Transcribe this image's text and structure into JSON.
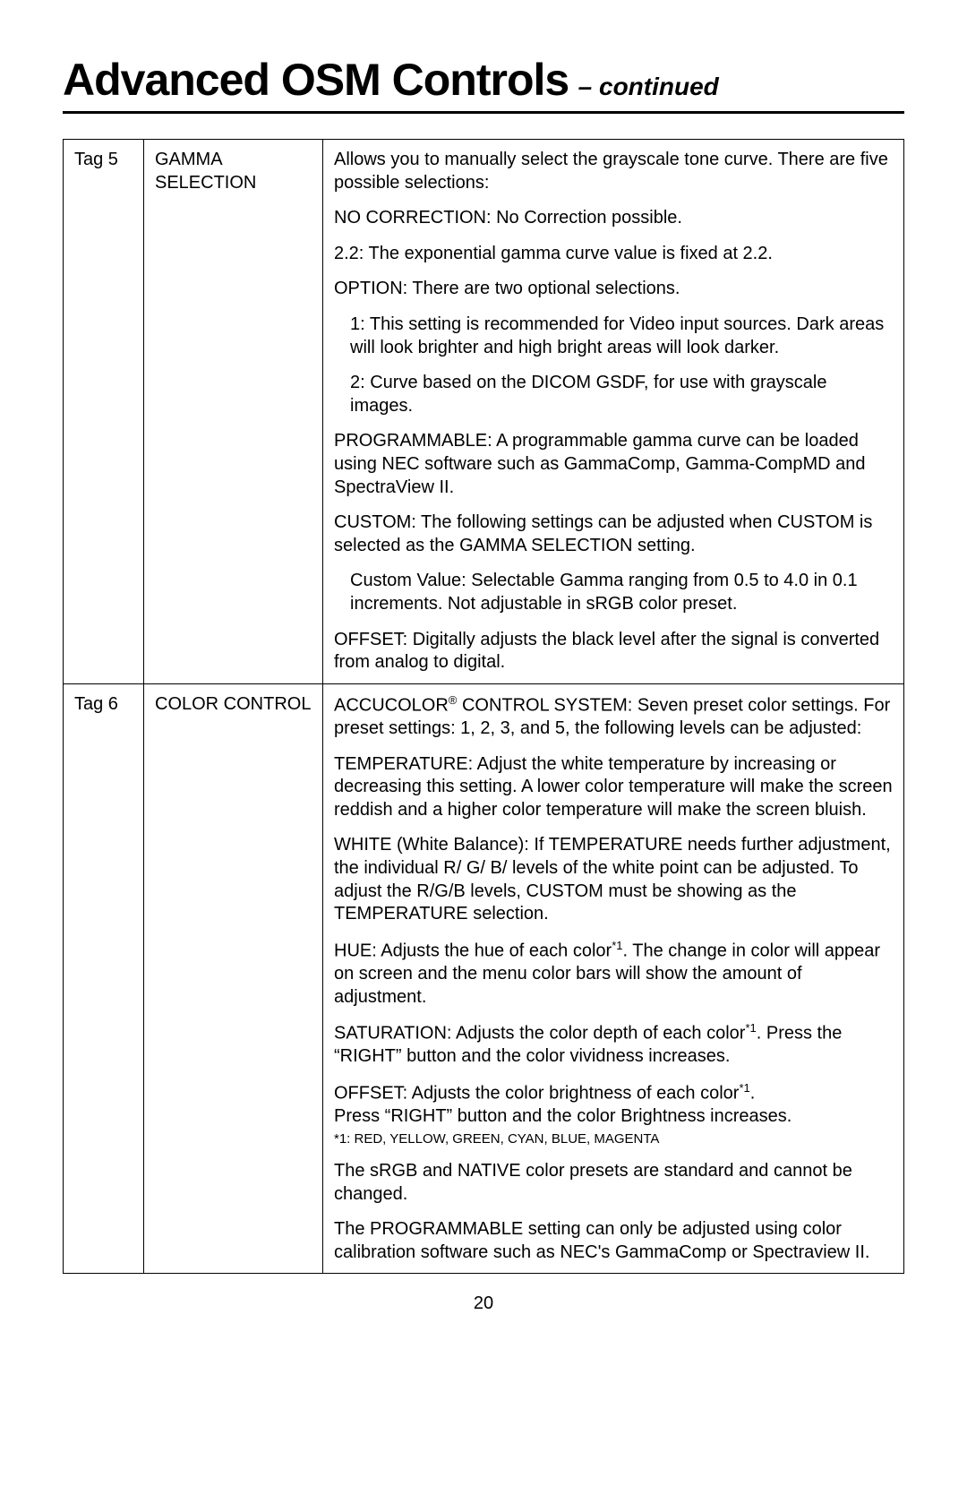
{
  "page": {
    "title_main": "Advanced OSM Controls",
    "title_suffix": "– continued",
    "page_number": "20"
  },
  "table": {
    "rows": [
      {
        "tag": "Tag 5",
        "label": "GAMMA SELECTION",
        "desc": [
          {
            "text": "Allows you to manually select the grayscale tone curve. There are five possible selections:",
            "indent": false
          },
          {
            "text": "NO CORRECTION: No Correction possible.",
            "indent": false
          },
          {
            "text": "2.2: The exponential gamma curve value is fixed at 2.2.",
            "indent": false
          },
          {
            "text": "OPTION: There are two optional selections.",
            "indent": false
          },
          {
            "text": "1: This setting is recommended for Video input sources. Dark areas will look brighter and high bright areas will look darker.",
            "indent": true
          },
          {
            "text": "2: Curve based on the DICOM GSDF, for use with grayscale images.",
            "indent": true
          },
          {
            "text": "PROGRAMMABLE: A programmable gamma curve can be loaded using NEC software such as GammaComp, Gamma-CompMD and SpectraView II.",
            "indent": false
          },
          {
            "text": "CUSTOM: The following settings can be adjusted when CUSTOM is selected as the GAMMA SELECTION setting.",
            "indent": false
          },
          {
            "text": "Custom Value: Selectable Gamma  ranging from 0.5 to 4.0 in 0.1 increments. Not adjustable in sRGB color preset.",
            "indent": true
          },
          {
            "text": "OFFSET: Digitally adjusts the black level after the signal is converted from analog to digital.",
            "indent": false
          }
        ]
      },
      {
        "tag": "Tag 6",
        "label": "COLOR CONTROL",
        "desc": [
          {
            "html": "ACCUCOLOR<span class='sup'>®</span> CONTROL SYSTEM: Seven preset color settings. For preset settings: 1, 2, 3, and 5, the following levels can be adjusted:",
            "indent": false
          },
          {
            "text": "TEMPERATURE: Adjust the white temperature by increasing or decreasing this setting. A lower color temperature will make the screen reddish and a higher color temperature will make the screen bluish.",
            "indent": false
          },
          {
            "text": "WHITE (White Balance): If TEMPERATURE needs further adjustment, the individual R/ G/ B/ levels of the white point can be adjusted. To adjust the R/G/B levels, CUSTOM must be showing as the TEMPERATURE selection.",
            "indent": false
          },
          {
            "html": "HUE: Adjusts the hue of each color<span class='sup'>*1</span>. The change in color will appear on screen and the menu color bars will show the amount of adjustment.",
            "indent": false
          },
          {
            "html": "SATURATION: Adjusts the color depth of each color<span class='sup'>*1</span>. Press the “RIGHT” button and the color vividness increases.",
            "indent": false
          },
          {
            "html": "OFFSET: Adjusts the color brightness of each color<span class='sup'>*1</span>.<br>Press “RIGHT” button and the color Brightness increases.<div class='footnote'>*1: RED, YELLOW, GREEN, CYAN, BLUE, MAGENTA</div>",
            "indent": false
          },
          {
            "text": "The sRGB and NATIVE color presets are standard and cannot be changed.",
            "indent": false
          },
          {
            "text": "The PROGRAMMABLE setting can only be adjusted using color calibration software such as NEC's GammaComp or Spectraview II.",
            "indent": false
          }
        ]
      }
    ]
  }
}
